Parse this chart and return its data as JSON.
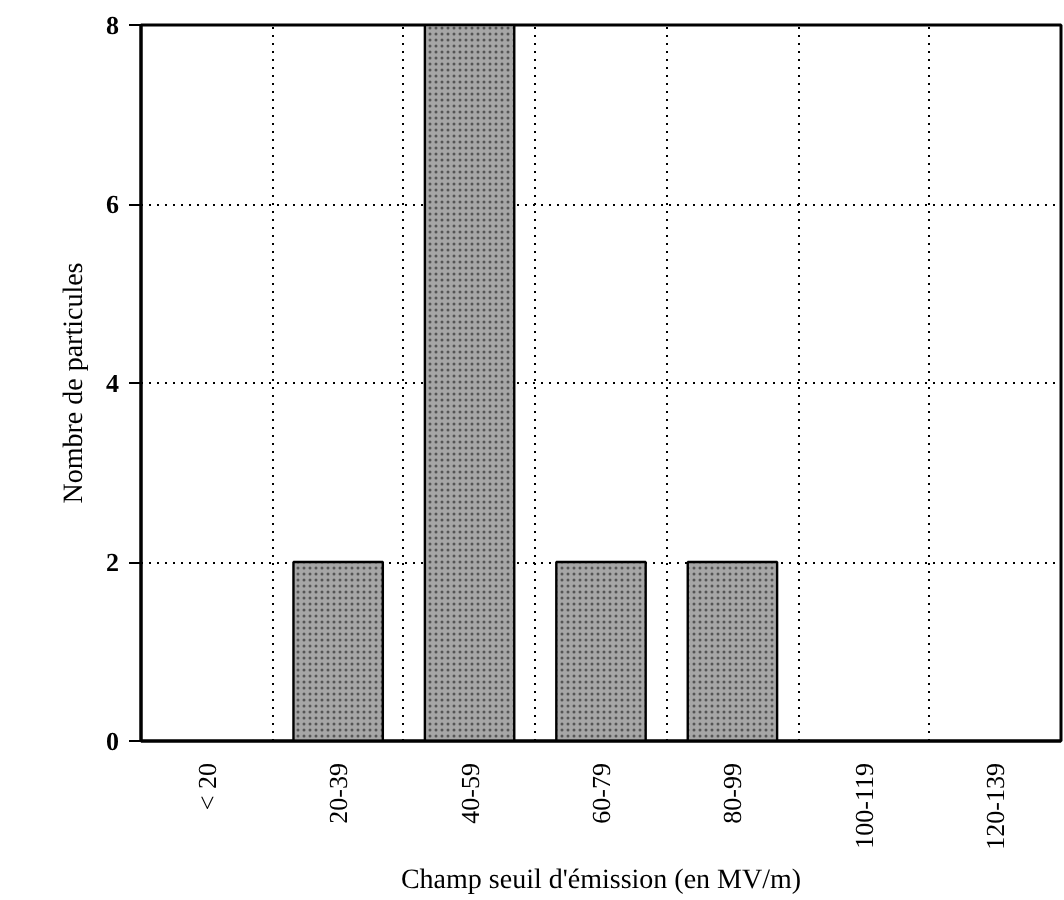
{
  "chart_data": {
    "type": "bar",
    "xlabel": "Champ seuil d'émission (en MV/m)",
    "ylabel": "Nombre de particules",
    "categories": [
      "< 20",
      "20-39",
      "40-59",
      "60-79",
      "80-99",
      "100-119",
      "120-139"
    ],
    "values": [
      0,
      2,
      8,
      2,
      2,
      0,
      0
    ],
    "color": "#a6a6a6",
    "ylim": [
      0,
      8
    ],
    "yticks": [
      0,
      2,
      4,
      6,
      8
    ],
    "grid": true
  }
}
